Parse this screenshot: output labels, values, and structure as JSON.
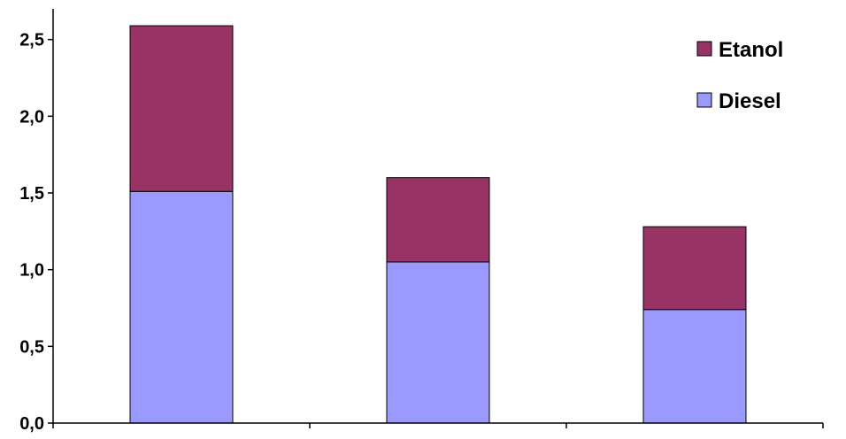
{
  "chart_data": {
    "type": "bar",
    "stacked": true,
    "categories": [
      "",
      "",
      ""
    ],
    "series": [
      {
        "name": "Diesel",
        "values": [
          1.51,
          1.05,
          0.74
        ],
        "color": "#9999FF"
      },
      {
        "name": "Etanol",
        "values": [
          1.08,
          0.55,
          0.54
        ],
        "color": "#993366"
      }
    ],
    "ylim": [
      0,
      2.7
    ],
    "yticks": [
      {
        "value": 0.0,
        "label": "0,0"
      },
      {
        "value": 0.5,
        "label": "0,5"
      },
      {
        "value": 1.0,
        "label": "1,0"
      },
      {
        "value": 1.5,
        "label": "1,5"
      },
      {
        "value": 2.0,
        "label": "2,0"
      },
      {
        "value": 2.5,
        "label": "2,5"
      }
    ],
    "legend": {
      "position": "top-right",
      "order": [
        "Etanol",
        "Diesel"
      ]
    },
    "grid": false
  }
}
